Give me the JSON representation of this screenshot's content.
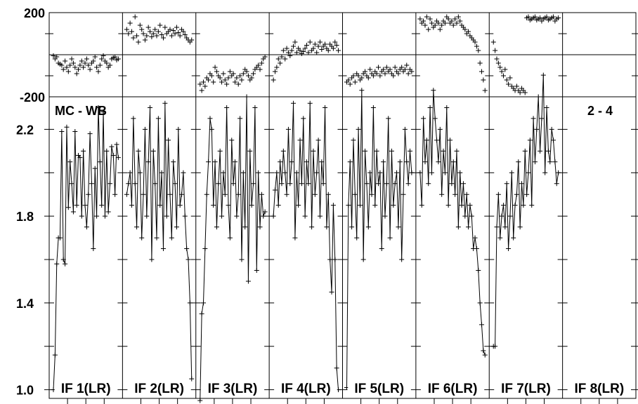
{
  "chart_data": [
    {
      "type": "scatter",
      "panel": "phase",
      "ylim": [
        -200,
        200
      ],
      "yticks": [
        {
          "value": 200,
          "label": "200"
        },
        {
          "value": -200,
          "label": "-200"
        }
      ],
      "series": [
        {
          "if_label": "IF 1(LR)",
          "values": [
            -5,
            -20,
            -10,
            -40,
            -45,
            -50,
            -70,
            -30,
            -60,
            -80,
            -50,
            -20,
            -40,
            -60,
            -90,
            -70,
            -50,
            -30,
            -60,
            -40,
            -20,
            -50,
            -70,
            -40,
            -30,
            -10,
            -60,
            -80,
            -50,
            -20,
            -5,
            -30,
            -40,
            -60,
            -50,
            -20,
            -15,
            -10,
            -25,
            -20
          ]
        },
        {
          "if_label": "IF 2(LR)",
          "values": [
            120,
            100,
            150,
            110,
            80,
            180,
            90,
            60,
            140,
            120,
            100,
            70,
            90,
            130,
            110,
            85,
            100,
            120,
            90,
            110,
            140,
            95,
            80,
            130,
            100,
            110,
            120,
            90,
            115,
            100,
            130,
            105,
            90,
            120,
            110,
            95,
            80,
            70,
            60,
            70
          ]
        },
        {
          "if_label": "IF 3(LR)",
          "values": [
            -140,
            -170,
            -130,
            -150,
            -110,
            -120,
            -90,
            -100,
            -130,
            -60,
            -80,
            -100,
            -110,
            -130,
            -90,
            -120,
            -140,
            -110,
            -80,
            -100,
            -90,
            -130,
            -110,
            -140,
            -100,
            -120,
            -90,
            -70,
            -80,
            -100,
            -120,
            -110,
            -90,
            -70,
            -60,
            -50,
            -70,
            -40,
            -20,
            -10
          ]
        },
        {
          "if_label": "IF 4(LR)",
          "values": [
            -120,
            -80,
            -60,
            -20,
            -40,
            -10,
            20,
            -20,
            30,
            10,
            -5,
            20,
            40,
            60,
            10,
            30,
            20,
            5,
            15,
            30,
            45,
            10,
            60,
            20,
            30,
            50,
            10,
            40,
            60,
            25,
            40,
            50,
            30,
            20,
            50,
            40,
            30,
            60,
            45,
            20
          ]
        },
        {
          "if_label": "IF 5(LR)",
          "values": [
            -130,
            -120,
            -140,
            -110,
            -100,
            -130,
            -90,
            -100,
            -120,
            -110,
            -90,
            -80,
            -100,
            -110,
            -70,
            -90,
            -100,
            -80,
            -90,
            -60,
            -100,
            -80,
            -70,
            -90,
            -60,
            -80,
            -70,
            -90,
            -100,
            -60,
            -80,
            -90,
            -70,
            -60,
            -80,
            -70,
            -50,
            -90,
            -70,
            -80
          ]
        },
        {
          "if_label": "IF 6(LR)",
          "values": [
            170,
            150,
            160,
            140,
            180,
            120,
            170,
            150,
            130,
            140,
            160,
            150,
            120,
            140,
            160,
            150,
            180,
            170,
            150,
            160,
            140,
            170,
            150,
            180,
            160,
            140,
            130,
            120,
            100,
            110,
            90,
            80,
            70,
            60,
            40,
            20,
            -40,
            -80,
            -120,
            -170
          ]
        },
        {
          "if_label": "IF 7(LR)",
          "values": [
            60,
            20,
            -20,
            -40,
            -60,
            -80,
            -100,
            -70,
            -120,
            -140,
            -110,
            -150,
            -160,
            -170,
            -150,
            -170,
            -180,
            -160,
            -170,
            -180,
            175,
            180,
            165,
            170,
            175,
            180,
            165,
            170,
            175,
            160,
            170,
            175,
            180,
            165,
            170,
            175,
            180,
            160,
            170,
            175
          ]
        },
        {
          "if_label": "IF 8(LR)",
          "values": []
        }
      ]
    },
    {
      "type": "line",
      "panel": "amplitude",
      "ylim": [
        0.96,
        2.35
      ],
      "yticks": [
        {
          "value": 2.2,
          "label": "2.2"
        },
        {
          "value": 1.8,
          "label": "1.8"
        },
        {
          "value": 1.4,
          "label": "1.4"
        },
        {
          "value": 1.0,
          "label": "1.0"
        }
      ],
      "series": [
        {
          "if_label": "IF 1(LR)",
          "values": [
            1.0,
            1.16,
            1.58,
            1.7,
            1.7,
            2.19,
            1.6,
            1.58,
            2.21,
            1.84,
            2.05,
            1.95,
            1.82,
            2.19,
            1.85,
            2.08,
            2.07,
            1.8,
            2.1,
            1.85,
            1.75,
            1.9,
            2.18,
            1.95,
            1.65,
            2.02,
            1.8,
            2.3,
            2.05,
            1.85,
            2.28,
            1.8,
            2.1,
            1.82,
            1.95,
            2.12,
            2.08,
            1.9,
            2.13,
            2.07
          ]
        },
        {
          "if_label": "IF 2(LR)",
          "values": [
            1.9,
            1.95,
            2.0,
            1.85,
            2.25,
            1.95,
            1.75,
            2.1,
            2.0,
            1.7,
            1.9,
            2.2,
            1.8,
            2.05,
            2.3,
            1.6,
            2.1,
            1.95,
            1.7,
            2.25,
            1.85,
            2.0,
            1.65,
            2.32,
            1.8,
            2.15,
            1.9,
            1.7,
            2.05,
            1.95,
            1.75,
            2.2,
            1.85,
            1.9,
            2.0,
            1.8,
            1.65,
            1.6,
            1.4,
            1.05
          ]
        },
        {
          "if_label": "IF 3(LR)",
          "values": [
            0.95,
            1.35,
            1.4,
            1.65,
            1.9,
            2.05,
            2.25,
            2.2,
            1.85,
            2.05,
            1.75,
            1.95,
            2.1,
            1.8,
            2.0,
            1.9,
            2.3,
            1.85,
            1.7,
            2.15,
            1.95,
            2.05,
            1.8,
            1.9,
            2.25,
            1.6,
            2.0,
            1.75,
            2.35,
            1.5,
            2.1,
            1.85,
            1.95,
            2.3,
            1.55,
            2.0,
            1.75,
            1.9,
            1.8,
            1.82
          ]
        },
        {
          "if_label": "IF 4(LR)",
          "values": [
            1.8,
            1.92,
            2.0,
            1.85,
            2.05,
            1.95,
            2.1,
            2.0,
            1.9,
            2.2,
            1.95,
            2.05,
            2.32,
            1.7,
            2.0,
            1.85,
            2.15,
            1.95,
            2.25,
            1.8,
            2.05,
            1.95,
            2.32,
            1.75,
            2.1,
            1.9,
            2.0,
            2.15,
            1.8,
            2.05,
            1.95,
            2.3,
            1.75,
            1.9,
            1.6,
            1.45,
            1.85,
            1.6,
            1.1,
            1.0
          ]
        },
        {
          "if_label": "IF 5(LR)",
          "values": [
            1.01,
            1.85,
            2.05,
            1.75,
            2.15,
            1.9,
            1.7,
            2.2,
            1.85,
            2.38,
            1.6,
            2.1,
            1.95,
            1.75,
            2.0,
            1.9,
            2.3,
            1.85,
            2.1,
            1.95,
            2.0,
            1.65,
            2.05,
            1.8,
            1.95,
            2.25,
            1.7,
            2.1,
            1.85,
            1.95,
            2.0,
            1.75,
            2.05,
            1.6,
            1.9,
            2.2,
            2.05,
            1.95,
            2.1,
            2.0
          ]
        },
        {
          "if_label": "IF 6(LR)",
          "values": [
            2.0,
            1.85,
            2.25,
            2.05,
            2.15,
            1.95,
            2.3,
            2.0,
            2.38,
            2.25,
            2.15,
            2.05,
            2.2,
            1.9,
            2.1,
            2.0,
            2.3,
            1.85,
            2.15,
            1.95,
            2.05,
            1.9,
            2.1,
            1.75,
            2.0,
            1.85,
            1.95,
            1.8,
            1.9,
            1.75,
            1.85,
            1.8,
            1.65,
            1.7,
            1.65,
            1.55,
            1.4,
            1.3,
            1.18,
            1.16
          ]
        },
        {
          "if_label": "IF 7(LR)",
          "values": [
            1.2,
            1.2,
            1.75,
            1.9,
            1.7,
            1.8,
            1.85,
            1.75,
            1.95,
            1.65,
            1.8,
            2.0,
            1.7,
            1.85,
            1.9,
            2.05,
            1.75,
            1.95,
            1.85,
            2.1,
            1.9,
            2.0,
            2.15,
            1.85,
            2.25,
            2.05,
            2.2,
            2.35,
            2.1,
            2.25,
            2.45,
            2.0,
            2.3,
            2.1,
            2.05,
            2.2,
            2.15,
            2.05,
            1.95,
            2.0
          ]
        },
        {
          "if_label": "IF 8(LR)",
          "values": []
        }
      ]
    }
  ],
  "annotations": {
    "source": "MC - WB",
    "baseline": "2 - 4"
  }
}
